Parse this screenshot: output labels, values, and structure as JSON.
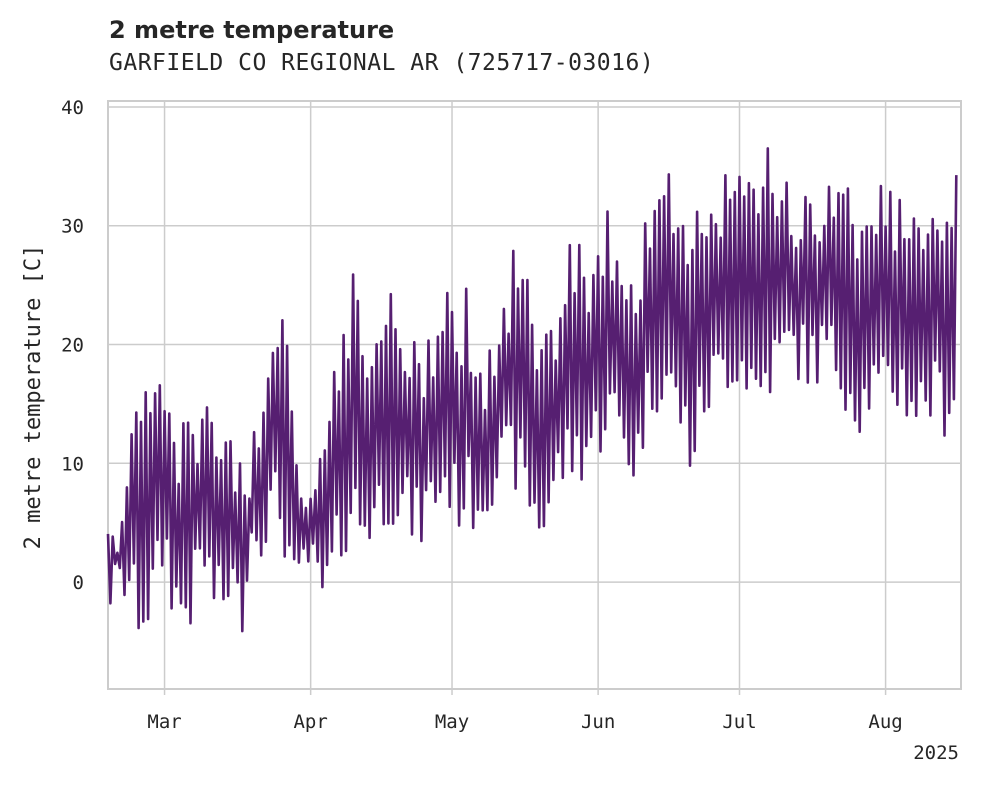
{
  "chart_data": {
    "type": "line",
    "title": "2 metre temperature",
    "subtitle": "GARFIELD CO REGIONAL AR (725717-03016)",
    "xlabel": "",
    "ylabel": "2 metre temperature [C]",
    "xlim": [
      "2025-02-17",
      "2025-08-17"
    ],
    "ylim": [
      -9,
      40.5
    ],
    "yticks": [
      0,
      10,
      20,
      30,
      40
    ],
    "ytick_labels": [
      "0",
      "10",
      "20",
      "30",
      "40"
    ],
    "xticks": [
      "2025-03-01",
      "2025-04-01",
      "2025-05-01",
      "2025-06-01",
      "2025-07-01",
      "2025-08-01"
    ],
    "xtick_labels": [
      "Mar",
      "Apr",
      "May",
      "Jun",
      "Jul",
      "Aug"
    ],
    "x_offset_label": "2025",
    "grid": true,
    "series": [
      {
        "color": "#561f71",
        "x": [
          "2025-02-17",
          "2025-02-19",
          "2025-02-21",
          "2025-02-23",
          "2025-02-25",
          "2025-02-27",
          "2025-03-01",
          "2025-03-03",
          "2025-03-05",
          "2025-03-07",
          "2025-03-09",
          "2025-03-11",
          "2025-03-13",
          "2025-03-15",
          "2025-03-17",
          "2025-03-19",
          "2025-03-21",
          "2025-03-23",
          "2025-03-25",
          "2025-03-27",
          "2025-03-29",
          "2025-03-31",
          "2025-04-02",
          "2025-04-04",
          "2025-04-06",
          "2025-04-08",
          "2025-04-10",
          "2025-04-12",
          "2025-04-14",
          "2025-04-16",
          "2025-04-18",
          "2025-04-20",
          "2025-04-22",
          "2025-04-24",
          "2025-04-26",
          "2025-04-28",
          "2025-04-30",
          "2025-05-02",
          "2025-05-04",
          "2025-05-06",
          "2025-05-08",
          "2025-05-10",
          "2025-05-12",
          "2025-05-14",
          "2025-05-16",
          "2025-05-18",
          "2025-05-20",
          "2025-05-22",
          "2025-05-24",
          "2025-05-26",
          "2025-05-28",
          "2025-05-30",
          "2025-06-01",
          "2025-06-03",
          "2025-06-05",
          "2025-06-07",
          "2025-06-09",
          "2025-06-11",
          "2025-06-13",
          "2025-06-15",
          "2025-06-17",
          "2025-06-19",
          "2025-06-21",
          "2025-06-23",
          "2025-06-25",
          "2025-06-27",
          "2025-06-29",
          "2025-07-01",
          "2025-07-03",
          "2025-07-05",
          "2025-07-07",
          "2025-07-09",
          "2025-07-11",
          "2025-07-13",
          "2025-07-15",
          "2025-07-17",
          "2025-07-19",
          "2025-07-21",
          "2025-07-23",
          "2025-07-25",
          "2025-07-27",
          "2025-07-29",
          "2025-07-31",
          "2025-08-02",
          "2025-08-04",
          "2025-08-06",
          "2025-08-08",
          "2025-08-10",
          "2025-08-12",
          "2025-08-14",
          "2025-08-16"
        ],
        "max": [
          7.0,
          6.0,
          12.0,
          15.0,
          17.0,
          18.0,
          18.0,
          12.0,
          16.0,
          14.0,
          17.0,
          15.0,
          13.0,
          12.0,
          11.0,
          10.0,
          16.0,
          20.0,
          24.0,
          21.0,
          13.0,
          9.0,
          11.0,
          15.0,
          18.0,
          22.0,
          27.0,
          24.0,
          21.0,
          23.0,
          25.0,
          24.0,
          22.0,
          20.0,
          22.0,
          24.0,
          28.0,
          22.0,
          25.0,
          20.0,
          18.0,
          21.0,
          24.0,
          28.0,
          29.0,
          22.0,
          20.0,
          23.0,
          25.0,
          29.0,
          29.0,
          27.0,
          30.0,
          33.0,
          28.0,
          26.0,
          24.0,
          31.0,
          33.0,
          34.0,
          35.0,
          33.0,
          32.0,
          35.0,
          33.0,
          34.0,
          35.0,
          35.0,
          34.0,
          36.0,
          38.0,
          35.0,
          36.0,
          34.0,
          33.0,
          32.0,
          34.0,
          34.0,
          35.0,
          34.0,
          32.0,
          33.0,
          35.0,
          33.0,
          33.0,
          34.0,
          34.0,
          33.0,
          34.0,
          35.0,
          36.0
        ],
        "min": [
          -3.0,
          -4.0,
          -2.0,
          -5.0,
          -5.0,
          -3.0,
          1.0,
          -4.0,
          -5.0,
          -4.0,
          0.0,
          -3.0,
          -5.0,
          -2.0,
          -6.0,
          1.0,
          2.0,
          3.0,
          4.0,
          1.0,
          -5.0,
          0.0,
          -3.0,
          -4.0,
          -1.0,
          2.0,
          4.0,
          2.0,
          3.0,
          4.0,
          5.0,
          4.0,
          3.0,
          2.0,
          4.0,
          5.0,
          6.0,
          4.0,
          5.0,
          4.0,
          5.0,
          7.0,
          7.0,
          8.0,
          6.0,
          4.0,
          2.0,
          5.0,
          7.0,
          8.0,
          8.0,
          9.0,
          10.0,
          12.0,
          11.0,
          9.0,
          7.0,
          12.0,
          14.0,
          15.0,
          13.0,
          11.0,
          8.0,
          12.0,
          14.0,
          15.0,
          16.0,
          16.0,
          15.0,
          13.0,
          15.0,
          16.0,
          17.0,
          17.0,
          16.0,
          16.0,
          17.0,
          16.0,
          15.0,
          13.0,
          12.0,
          14.0,
          13.0,
          14.0,
          14.0,
          13.0,
          12.0,
          13.0,
          13.0,
          12.0,
          14.0
        ]
      }
    ]
  }
}
